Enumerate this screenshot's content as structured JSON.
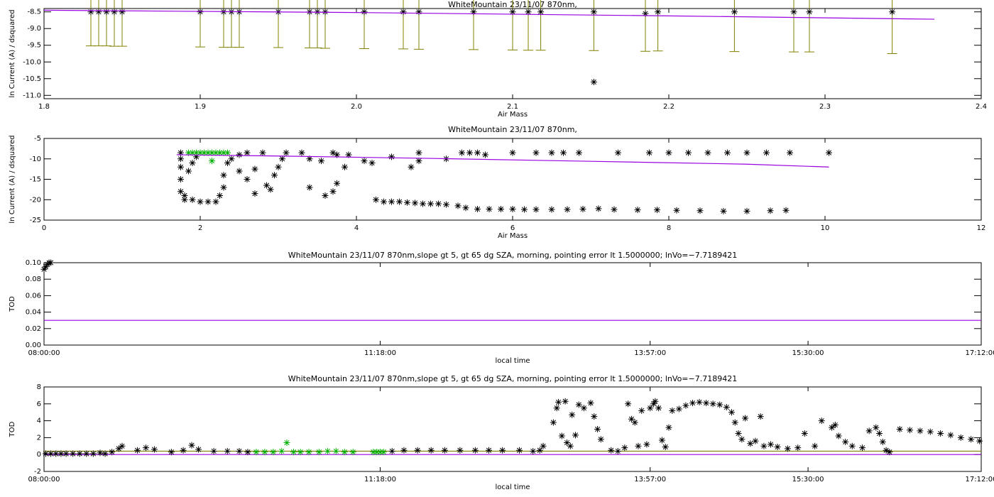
{
  "chart_data": [
    {
      "type": "scatter",
      "title": "WhiteMountain 23/11/07 870nm,",
      "x_label": "Air Mass",
      "y_label": "ln Current (A) / dsquared",
      "xlim": [
        1.8,
        2.4
      ],
      "xticks": [
        1.8,
        1.9,
        {
          "value": 2.0,
          "label": "2.0"
        },
        2.1,
        2.2,
        2.3,
        2.4
      ],
      "ylim": [
        -11.1,
        -8.4
      ],
      "yticks": [
        -8.5,
        {
          "value": -9.0,
          "label": "-9.0"
        },
        -9.5,
        {
          "value": -10.0,
          "label": "-10.0"
        },
        -10.5,
        {
          "value": -11.0,
          "label": "-11.0"
        }
      ],
      "series": [
        {
          "style": "asterisk",
          "color": "#000000",
          "error_color": "#808000",
          "x": [
            1.83,
            1.835,
            1.84,
            1.845,
            1.85,
            1.9,
            1.915,
            1.92,
            1.925,
            1.95,
            1.97,
            1.975,
            1.98,
            2.005,
            2.03,
            2.04,
            2.075,
            2.1,
            2.11,
            2.118,
            2.152,
            2.185,
            2.193,
            2.242,
            2.28,
            2.29,
            2.343
          ],
          "values": [
            -8.5,
            -8.5,
            -8.5,
            -8.5,
            -8.5,
            -8.5,
            -8.5,
            -8.5,
            -8.5,
            -8.5,
            -8.5,
            -8.5,
            -8.5,
            -8.5,
            -8.5,
            -8.5,
            -8.5,
            -8.5,
            -8.5,
            -8.5,
            -8.5,
            -8.55,
            -8.5,
            -8.5,
            -8.5,
            -8.5,
            -8.5
          ],
          "errors": [
            1.02,
            1.02,
            1.02,
            1.03,
            1.03,
            1.05,
            1.06,
            1.06,
            1.06,
            1.07,
            1.08,
            1.08,
            1.09,
            1.1,
            1.11,
            1.12,
            1.13,
            1.14,
            1.15,
            1.15,
            1.16,
            1.13,
            1.17,
            1.19,
            1.2,
            1.2,
            1.25
          ]
        },
        {
          "style": "asterisk",
          "color": "#000000",
          "x": [
            2.152
          ],
          "values": [
            -10.6
          ]
        },
        {
          "style": "line",
          "color": "#9a00e0",
          "x": [
            1.8,
            2.0,
            2.2,
            2.37
          ],
          "values": [
            -8.45,
            -8.52,
            -8.62,
            -8.72
          ]
        }
      ]
    },
    {
      "type": "scatter",
      "title": "WhiteMountain 23/11/07 870nm,",
      "x_label": "Air Mass",
      "y_label": "ln Current (A) / dsquared",
      "xlim": [
        0,
        12
      ],
      "xticks": [
        0,
        2,
        4,
        6,
        8,
        10,
        12
      ],
      "ylim": [
        -25,
        -5
      ],
      "yticks": [
        -5,
        -10,
        -15,
        -20,
        -25
      ],
      "series": [
        {
          "style": "asterisk",
          "color": "#000000",
          "x": [
            1.75,
            1.75,
            1.75,
            1.75,
            1.75,
            1.8,
            1.85,
            1.9,
            1.95,
            1.8,
            1.9,
            2.0,
            2.1,
            2.2,
            2.25,
            2.3,
            2.3,
            2.35,
            2.4,
            2.5,
            2.6,
            2.5,
            2.7,
            2.85,
            2.9,
            2.95,
            3.0,
            3.05,
            3.1,
            2.8,
            2.6,
            2.7,
            3.3,
            3.4,
            3.55,
            3.75,
            3.7,
            3.4,
            3.6,
            3.7,
            3.75,
            3.85,
            3.9,
            4.2,
            4.25,
            4.1,
            4.45,
            4.7,
            4.8,
            4.8,
            5.15,
            5.35,
            5.45,
            5.55,
            5.65,
            6.0,
            6.3,
            6.5,
            6.65,
            6.85,
            7.35,
            7.75,
            8.0,
            8.25,
            8.5,
            8.75,
            9.0,
            9.25,
            9.55,
            10.05,
            4.35,
            4.45,
            4.55,
            4.65,
            4.75,
            4.85,
            4.95,
            5.05,
            5.15,
            5.3,
            5.4,
            5.55,
            5.7,
            5.85,
            6.0,
            6.15,
            6.3,
            6.5,
            6.7,
            6.9,
            7.1,
            7.3,
            7.6,
            7.85,
            8.1,
            8.4,
            8.7,
            9.0,
            9.3,
            9.5
          ],
          "values": [
            -8.5,
            -10,
            -12,
            -15,
            -18,
            -19,
            -13,
            -11,
            -9.5,
            -20,
            -20,
            -20.5,
            -20.5,
            -20.5,
            -19,
            -17,
            -14,
            -11,
            -10,
            -9,
            -8.5,
            -13,
            -18.5,
            -16.5,
            -17.5,
            -14,
            -12,
            -10,
            -8.5,
            -8.5,
            -15,
            -12.5,
            -8.5,
            -10,
            -10.5,
            -9,
            -8.5,
            -17,
            -19,
            -18,
            -16,
            -12,
            -9,
            -11,
            -20,
            -10.5,
            -9.5,
            -12,
            -10.5,
            -8.5,
            -10,
            -8.5,
            -8.5,
            -8.5,
            -9,
            -8.5,
            -8.5,
            -8.5,
            -8.5,
            -8.5,
            -8.5,
            -8.5,
            -8.5,
            -8.5,
            -8.5,
            -8.5,
            -8.5,
            -8.5,
            -8.5,
            -8.5,
            -20.5,
            -20.5,
            -20.5,
            -20.7,
            -20.8,
            -21,
            -21,
            -21,
            -21.2,
            -21.5,
            -22,
            -22.3,
            -22.3,
            -22.3,
            -22.3,
            -22.4,
            -22.4,
            -22.4,
            -22.4,
            -22.3,
            -22.2,
            -22.4,
            -22.5,
            -22.5,
            -22.6,
            -22.7,
            -22.8,
            -22.8,
            -22.7,
            -22.6
          ]
        },
        {
          "style": "asterisk",
          "color": "#00b000",
          "x": [
            1.85,
            1.9,
            1.95,
            2.0,
            2.05,
            2.1,
            2.15,
            2.2,
            2.25,
            2.3,
            2.35,
            2.15
          ],
          "values": [
            -8.5,
            -8.5,
            -8.5,
            -8.5,
            -8.5,
            -8.5,
            -8.5,
            -8.5,
            -8.5,
            -8.5,
            -8.5,
            -10.5
          ]
        },
        {
          "style": "line",
          "color": "#9a00e0",
          "x": [
            1.7,
            3,
            5,
            7,
            9,
            10.05
          ],
          "values": [
            -9.0,
            -9.3,
            -9.9,
            -10.6,
            -11.3,
            -12.0
          ]
        }
      ]
    },
    {
      "type": "scatter",
      "title": "WhiteMountain 23/11/07 870nm,slope gt 5, gt 65 dg SZA, morning, pointing error lt 1.5000000; lnVo=−7.7189421",
      "x_label": "local time",
      "y_label": "TOD",
      "xlim": [
        "08:00:00",
        "17:12:00"
      ],
      "xticks": [
        "08:00:00",
        "11:18:00",
        "13:57:00",
        "15:30:00",
        "17:12:00"
      ],
      "ylim": [
        0,
        0.1
      ],
      "yticks": [
        {
          "value": 0,
          "label": "0.00"
        },
        {
          "value": 0.02,
          "label": "0.02"
        },
        {
          "value": 0.04,
          "label": "0.04"
        },
        {
          "value": 0.06,
          "label": "0.06"
        },
        {
          "value": 0.08,
          "label": "0.08"
        },
        {
          "value": 0.1,
          "label": "0.10"
        }
      ],
      "series": [
        {
          "style": "asterisk",
          "color": "#000000",
          "x": [
            "08:00:00",
            "08:01:00",
            "08:02:00",
            "08:03:00",
            "08:04:00"
          ],
          "values": [
            0.092,
            0.095,
            0.098,
            0.1,
            0.1
          ]
        },
        {
          "style": "line",
          "color": "#9a00e0",
          "x": [
            "08:00:00",
            "17:12:00"
          ],
          "values": [
            0.03,
            0.03
          ]
        }
      ]
    },
    {
      "type": "scatter",
      "title": "WhiteMountain 23/11/07 870nm,slope gt 5, gt 65 dg SZA, morning, pointing error lt 1.5000000; lnVo=−7.7189421",
      "x_label": "local time",
      "y_label": "TOD",
      "xlim": [
        "08:00:00",
        "17:12:00"
      ],
      "xticks": [
        "08:00:00",
        "11:18:00",
        "13:57:00",
        "15:30:00",
        "17:12:00"
      ],
      "ylim": [
        -2,
        8
      ],
      "yticks": [
        -2,
        0,
        2,
        4,
        6,
        8
      ],
      "series": [
        {
          "style": "line",
          "color": "#808000",
          "x": [
            "08:00:00",
            "17:12:00"
          ],
          "values": [
            0.4,
            0.4
          ]
        },
        {
          "style": "line",
          "color": "#9a00e0",
          "x": [
            "08:00:00",
            "17:12:00"
          ],
          "values": [
            0,
            0
          ]
        },
        {
          "style": "asterisk",
          "color": "#000000",
          "x": [
            "08:01:00",
            "08:04:00",
            "08:07:00",
            "08:10:00",
            "08:13:00",
            "08:17:00",
            "08:21:00",
            "08:25:00",
            "08:29:00",
            "08:33:00",
            "08:36:00",
            "08:40:00",
            "08:44:00",
            "08:46:00",
            "08:55:00",
            "09:00:00",
            "09:05:00",
            "09:15:00",
            "09:22:00",
            "09:27:00",
            "09:31:00",
            "09:40:00",
            "09:48:00",
            "09:55:00",
            "10:00:00",
            "11:25:00",
            "11:32:00",
            "11:40:00",
            "11:48:00",
            "11:56:00",
            "12:05:00",
            "12:14:00",
            "12:22:00",
            "12:30:00",
            "12:40:00",
            "12:48:00",
            "12:52:00",
            "12:54:00",
            "13:00:00",
            "13:02:00",
            "13:03:00",
            "13:05:00",
            "13:07:00",
            "13:08:00",
            "13:10:00",
            "13:11:00",
            "13:13:00",
            "13:15:00",
            "13:18:00",
            "13:22:00",
            "13:24:00",
            "13:26:00",
            "13:28:00",
            "13:34:00",
            "13:38:00",
            "13:42:00",
            "13:44:00",
            "13:46:00",
            "13:48:00",
            "13:50:00",
            "13:52:00",
            "13:55:00",
            "13:57:00",
            "13:59:00",
            "14:00:00",
            "14:02:00",
            "14:04:00",
            "14:06:00",
            "14:08:00",
            "14:10:00",
            "14:14:00",
            "14:18:00",
            "14:22:00",
            "14:26:00",
            "14:30:00",
            "14:34:00",
            "14:38:00",
            "14:42:00",
            "14:45:00",
            "14:47:00",
            "14:49:00",
            "14:51:00",
            "14:53:00",
            "14:56:00",
            "14:59:00",
            "15:02:00",
            "15:04:00",
            "15:08:00",
            "15:12:00",
            "15:18:00",
            "15:24:00",
            "15:28:00",
            "15:34:00",
            "15:38:00",
            "15:44:00",
            "15:46:00",
            "15:48:00",
            "15:52:00",
            "15:56:00",
            "16:02:00",
            "16:06:00",
            "16:10:00",
            "16:12:00",
            "16:14:00",
            "16:16:00",
            "16:18:00",
            "16:24:00",
            "16:30:00",
            "16:36:00",
            "16:42:00",
            "16:48:00",
            "16:54:00",
            "17:00:00",
            "17:06:00",
            "17:11:00"
          ],
          "values": [
            0.1,
            0.1,
            0.1,
            0.1,
            0.1,
            0.1,
            0.1,
            0.1,
            0.1,
            0.2,
            0.1,
            0.3,
            0.7,
            1.0,
            0.5,
            0.8,
            0.6,
            0.3,
            0.5,
            1.1,
            0.6,
            0.4,
            0.4,
            0.4,
            0.3,
            0.4,
            0.5,
            0.5,
            0.5,
            0.5,
            0.5,
            0.5,
            0.5,
            0.5,
            0.5,
            0.4,
            0.5,
            1.0,
            3.8,
            5.5,
            6.2,
            2.2,
            6.3,
            1.4,
            1.0,
            4.7,
            2.3,
            5.9,
            5.5,
            6.1,
            4.5,
            3.0,
            1.8,
            0.5,
            0.4,
            0.8,
            6.0,
            4.2,
            3.8,
            1.0,
            5.2,
            1.2,
            5.5,
            6.0,
            6.3,
            5.5,
            1.7,
            0.9,
            3.2,
            5.2,
            5.4,
            5.8,
            6.1,
            6.2,
            6.1,
            6.0,
            5.9,
            5.6,
            5.0,
            3.8,
            2.5,
            1.8,
            4.3,
            1.3,
            1.6,
            4.5,
            1.0,
            1.2,
            0.9,
            0.7,
            0.8,
            2.5,
            1.0,
            4.0,
            3.2,
            3.5,
            2.2,
            1.5,
            1.0,
            0.8,
            2.8,
            3.2,
            2.5,
            1.5,
            0.5,
            0.3,
            3.0,
            2.9,
            2.8,
            2.7,
            2.5,
            2.3,
            2.0,
            1.8,
            1.6
          ]
        },
        {
          "style": "asterisk",
          "color": "#00b000",
          "x": [
            "10:05:00",
            "10:10:00",
            "10:15:00",
            "10:20:00",
            "10:23:00",
            "10:27:00",
            "10:31:00",
            "10:36:00",
            "10:42:00",
            "10:47:00",
            "10:52:00",
            "10:57:00",
            "11:02:00",
            "11:14:00",
            "11:16:00",
            "11:18:00",
            "11:20:00"
          ],
          "values": [
            0.3,
            0.3,
            0.3,
            0.4,
            1.4,
            0.3,
            0.3,
            0.3,
            0.3,
            0.4,
            0.4,
            0.3,
            0.3,
            0.3,
            0.3,
            0.3,
            0.3
          ]
        }
      ]
    }
  ]
}
